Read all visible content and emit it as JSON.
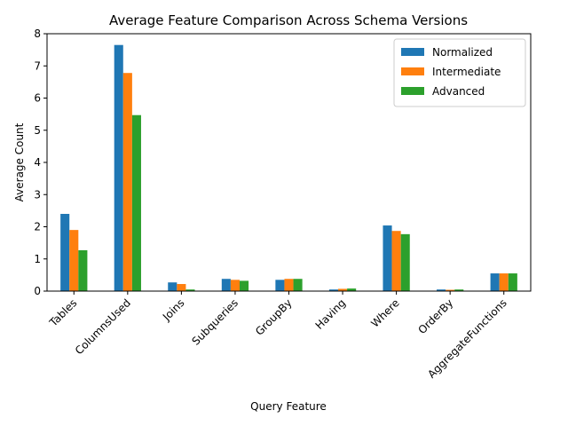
{
  "chart_data": {
    "type": "bar",
    "title": "Average Feature Comparison Across Schema Versions",
    "xlabel": "Query Feature",
    "ylabel": "Average Count",
    "ylim": [
      0,
      8
    ],
    "yticks": [
      0,
      1,
      2,
      3,
      4,
      5,
      6,
      7,
      8
    ],
    "grid": false,
    "legend_position": "top-right",
    "categories": [
      "Tables",
      "ColumnsUsed",
      "Joins",
      "Subqueries",
      "GroupBy",
      "Having",
      "Where",
      "OrderBy",
      "AggregateFunctions"
    ],
    "series": [
      {
        "name": "Normalized",
        "color": "#1f77b4",
        "values": [
          2.4,
          7.65,
          0.27,
          0.38,
          0.35,
          0.05,
          2.04,
          0.05,
          0.55
        ]
      },
      {
        "name": "Intermediate",
        "color": "#ff7f0e",
        "values": [
          1.9,
          6.78,
          0.22,
          0.35,
          0.38,
          0.07,
          1.87,
          0.04,
          0.55
        ]
      },
      {
        "name": "Advanced",
        "color": "#2ca02c",
        "values": [
          1.27,
          5.47,
          0.05,
          0.32,
          0.38,
          0.08,
          1.77,
          0.05,
          0.55
        ]
      }
    ]
  }
}
